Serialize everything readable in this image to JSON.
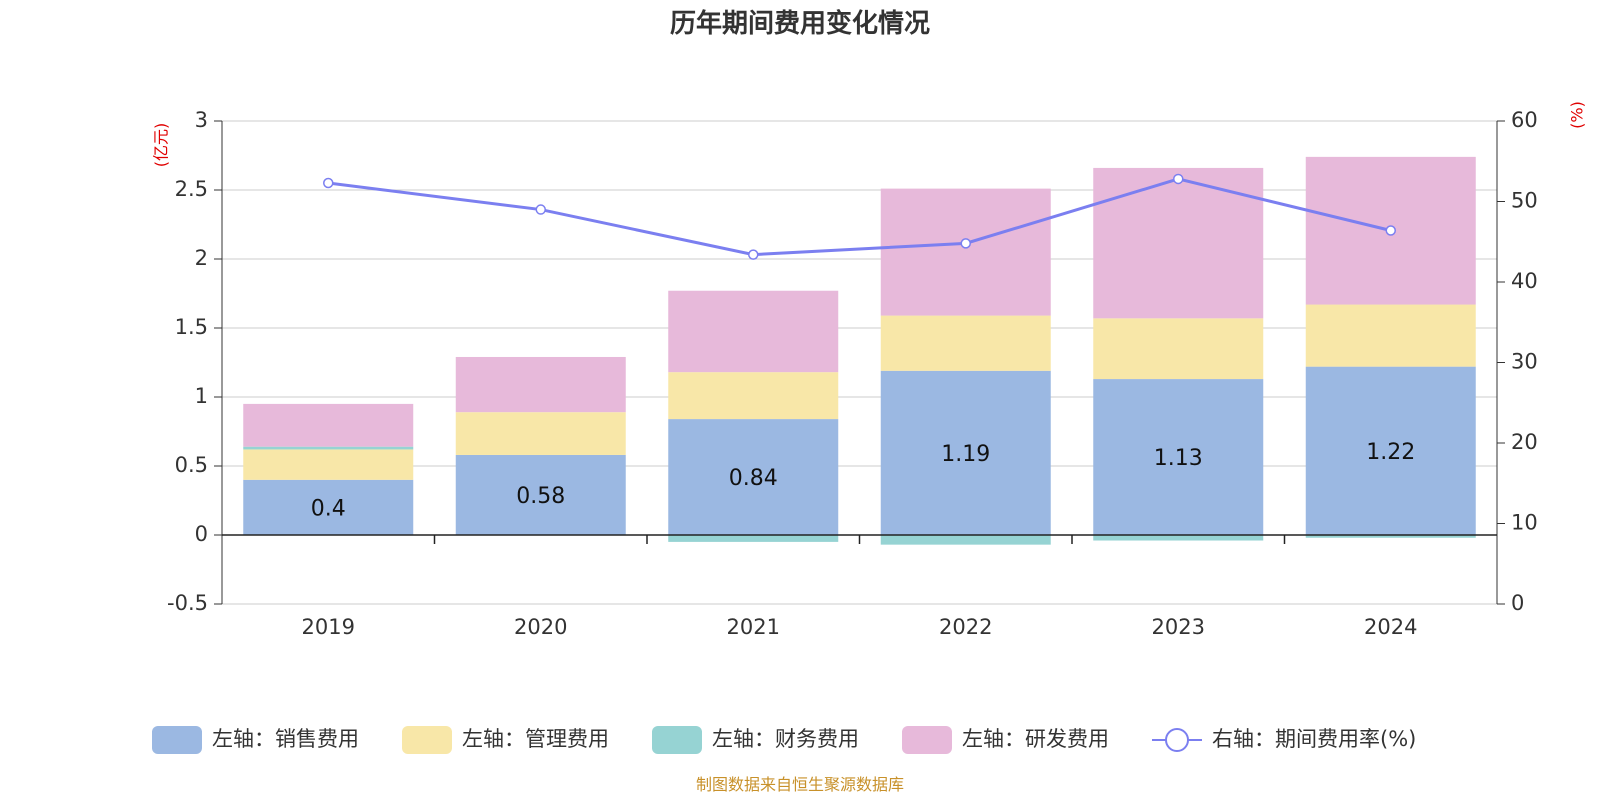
{
  "chart_data": {
    "type": "bar",
    "stacked": true,
    "title": "历年期间费用变化情况",
    "categories": [
      "2019",
      "2020",
      "2021",
      "2022",
      "2023",
      "2024"
    ],
    "left_axis": {
      "unit": "(亿元)",
      "ylim": [
        -0.5,
        3
      ],
      "ticks": [
        "3",
        "2.5",
        "2",
        "1.5",
        "1",
        "0.5",
        "0",
        "-0.5"
      ],
      "tick_values": [
        3,
        2.5,
        2,
        1.5,
        1,
        0.5,
        0,
        -0.5
      ]
    },
    "right_axis": {
      "unit": "(%)",
      "ylim": [
        0,
        60
      ],
      "ticks": [
        "60",
        "50",
        "40",
        "30",
        "20",
        "10",
        "0"
      ],
      "tick_values": [
        60,
        50,
        40,
        30,
        20,
        10,
        0
      ]
    },
    "series": [
      {
        "name": "左轴：销售费用",
        "color": "#9bb8e2",
        "values": [
          0.4,
          0.58,
          0.84,
          1.19,
          1.13,
          1.22
        ],
        "labels": [
          "0.4",
          "0.58",
          "0.84",
          "1.19",
          "1.13",
          "1.22"
        ]
      },
      {
        "name": "左轴：管理费用",
        "color": "#f8e7a8",
        "values": [
          0.22,
          0.31,
          0.34,
          0.4,
          0.44,
          0.45
        ]
      },
      {
        "name": "左轴：财务费用",
        "color": "#96d3d3",
        "values": [
          0.02,
          0.0,
          -0.05,
          -0.07,
          -0.04,
          -0.02
        ]
      },
      {
        "name": "左轴：研发费用",
        "color": "#e7b9da",
        "values": [
          0.31,
          0.4,
          0.59,
          0.92,
          1.09,
          1.07
        ]
      }
    ],
    "line_series": {
      "name": "右轴：期间费用率(%)",
      "color": "#7b7ff0",
      "values": [
        52.3,
        49.0,
        43.4,
        44.8,
        52.8,
        46.4
      ]
    },
    "grid": true,
    "legend_position": "bottom"
  },
  "source_note": "制图数据来自恒生聚源数据库"
}
